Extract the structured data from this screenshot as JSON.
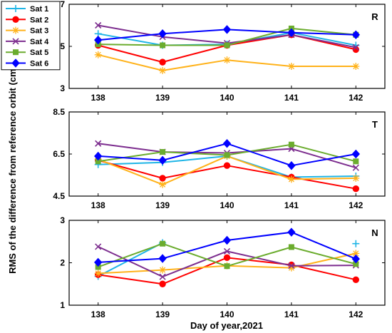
{
  "chart_data": {
    "type": "line",
    "xlabel": "Day of year,2021",
    "ylabel": "RMS of the difference from reference orbit (cm)",
    "x": [
      138,
      139,
      140,
      141,
      142
    ],
    "x_tick_labels": [
      "138",
      "139",
      "140",
      "141",
      "142"
    ],
    "grid": false,
    "legend_position": "top-left",
    "series_styles": [
      {
        "name": "Sat 1",
        "color": "#1fb5e6",
        "marker": "plus"
      },
      {
        "name": "Sat 2",
        "color": "#ff0000",
        "marker": "circle"
      },
      {
        "name": "Sat 3",
        "color": "#ffb21a",
        "marker": "asterisk"
      },
      {
        "name": "Sat 4",
        "color": "#7d2e8f",
        "marker": "cross"
      },
      {
        "name": "Sat 5",
        "color": "#6bac2e",
        "marker": "square"
      },
      {
        "name": "Sat 6",
        "color": "#0000ff",
        "marker": "diamond"
      }
    ],
    "panels": [
      {
        "label": "R",
        "ylim": [
          3,
          7
        ],
        "yticks": [
          3,
          5,
          7
        ],
        "y_tick_labels": [
          "3",
          "5",
          "7"
        ],
        "series": [
          {
            "name": "Sat 1",
            "values": [
              5.6,
              5.05,
              5.1,
              5.65,
              5.05
            ]
          },
          {
            "name": "Sat 2",
            "values": [
              5.05,
              4.25,
              5.05,
              5.55,
              4.85
            ]
          },
          {
            "name": "Sat 3",
            "values": [
              4.6,
              3.85,
              4.35,
              4.05,
              4.05
            ]
          },
          {
            "name": "Sat 4",
            "values": [
              6.0,
              5.45,
              5.15,
              5.55,
              4.95
            ]
          },
          {
            "name": "Sat 5",
            "values": [
              5.1,
              5.05,
              5.05,
              5.85,
              5.55
            ]
          },
          {
            "name": "Sat 6",
            "values": [
              5.3,
              5.6,
              5.8,
              5.65,
              5.55
            ]
          }
        ]
      },
      {
        "label": "T",
        "ylim": [
          4.5,
          8.5
        ],
        "yticks": [
          4.5,
          6.5,
          8.5
        ],
        "y_tick_labels": [
          "4.5",
          "6.5",
          "8.5"
        ],
        "series": [
          {
            "name": "Sat 1",
            "values": [
              6.0,
              6.1,
              6.4,
              5.4,
              5.45
            ]
          },
          {
            "name": "Sat 2",
            "values": [
              6.2,
              5.35,
              5.95,
              5.4,
              4.85
            ]
          },
          {
            "name": "Sat 3",
            "values": [
              6.25,
              5.05,
              6.4,
              5.3,
              5.35
            ]
          },
          {
            "name": "Sat 4",
            "values": [
              7.0,
              6.6,
              6.55,
              6.75,
              5.85
            ]
          },
          {
            "name": "Sat 5",
            "values": [
              6.15,
              6.6,
              6.45,
              6.95,
              6.15
            ]
          },
          {
            "name": "Sat 6",
            "values": [
              6.4,
              6.2,
              7.0,
              5.95,
              6.5
            ]
          }
        ]
      },
      {
        "label": "N",
        "ylim": [
          1,
          3
        ],
        "yticks": [
          1,
          2,
          3
        ],
        "y_tick_labels": [
          "1",
          "2",
          "3"
        ],
        "series": [
          {
            "name": "Sat 1",
            "values": [
              1.68,
              2.47,
              null,
              null,
              2.45
            ]
          },
          {
            "name": "Sat 2",
            "values": [
              1.72,
              1.5,
              2.12,
              1.95,
              1.6
            ]
          },
          {
            "name": "Sat 3",
            "values": [
              1.75,
              1.83,
              1.93,
              1.88,
              2.22
            ]
          },
          {
            "name": "Sat 4",
            "values": [
              2.38,
              1.67,
              2.27,
              1.93,
              1.94
            ]
          },
          {
            "name": "Sat 5",
            "values": [
              1.9,
              2.45,
              1.92,
              2.37,
              1.97
            ]
          },
          {
            "name": "Sat 6",
            "values": [
              2.01,
              2.1,
              2.53,
              2.72,
              2.09
            ]
          }
        ]
      }
    ]
  }
}
